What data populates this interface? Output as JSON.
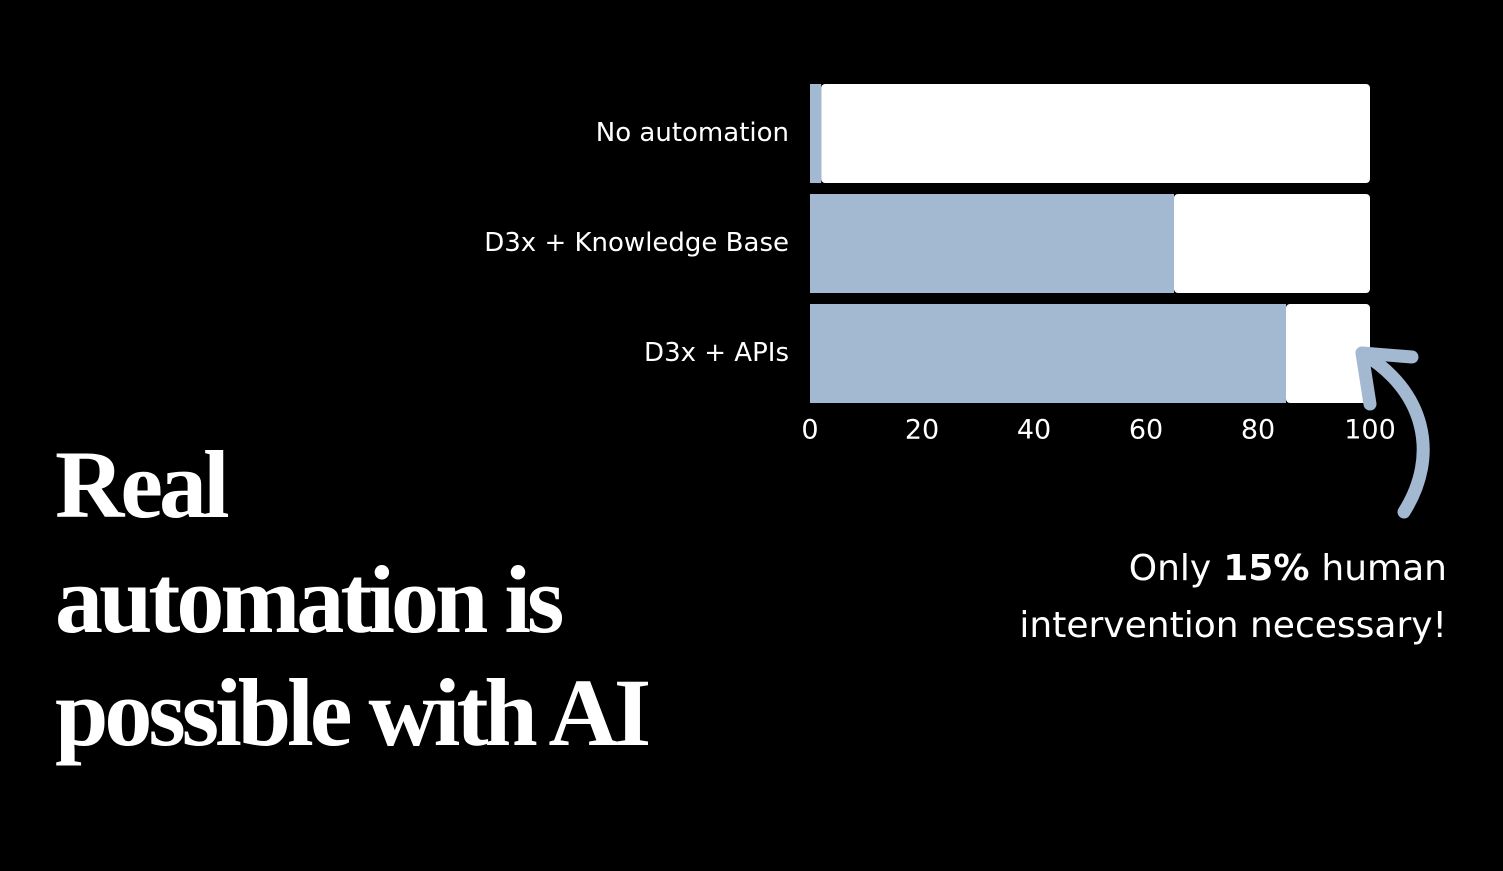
{
  "headline": [
    "Real",
    "automation is",
    "possible with AI"
  ],
  "chart_data": {
    "type": "stacked-bar-horizontal",
    "categories": [
      "No automation",
      "D3x + Knowledge Base",
      "D3x + APIs"
    ],
    "series": [
      {
        "color": "#a3b8d1",
        "values": [
          2,
          65,
          85
        ]
      },
      {
        "color": "#ffffff",
        "values": [
          98,
          35,
          15
        ]
      }
    ],
    "xlim": [
      0,
      100
    ],
    "xticks": [
      0,
      20,
      40,
      60,
      80,
      100
    ],
    "annotation": {
      "line1": [
        "Only",
        "15%",
        "human"
      ],
      "line2": "intervention necessary!"
    }
  }
}
